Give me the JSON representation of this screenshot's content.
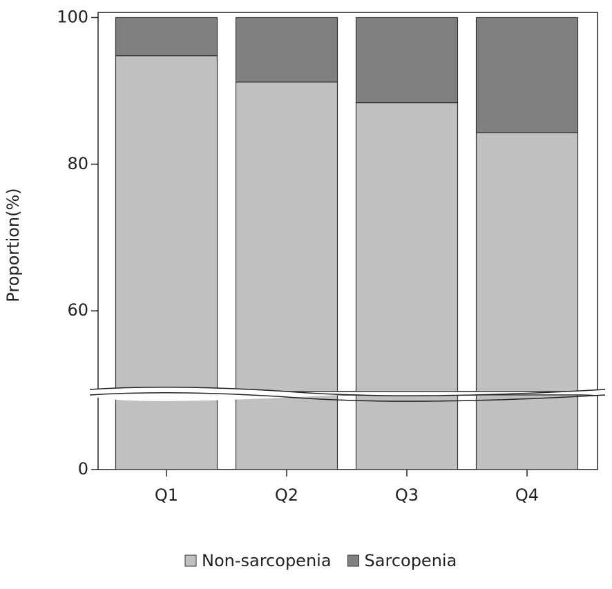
{
  "chart_data": {
    "type": "bar",
    "stacked": true,
    "y_label": "Proportion(%)",
    "categories": [
      "Q1",
      "Q2",
      "Q3",
      "Q4"
    ],
    "series": [
      {
        "name": "Non-sarcopenia",
        "color": "#c0c0c0",
        "values": [
          94.8,
          91.2,
          88.4,
          84.3
        ]
      },
      {
        "name": "Sarcopenia",
        "color": "#808080",
        "values": [
          5.2,
          8.8,
          11.6,
          15.7
        ]
      }
    ],
    "ylim_segments": [
      [
        0,
        45
      ],
      [
        49,
        100.7
      ]
    ],
    "yticks": [
      0,
      60,
      80,
      100
    ],
    "legend": "bottom"
  }
}
